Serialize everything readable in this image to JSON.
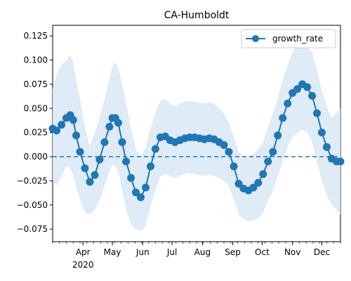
{
  "chart_data": {
    "type": "line",
    "title": "CA-Humboldt",
    "xlabel": "",
    "ylabel": "",
    "x_start": "2020-03-01",
    "x_end": "2020-12-20",
    "ylim": [
      -0.088,
      0.136
    ],
    "yticks": [
      -0.075,
      -0.05,
      -0.025,
      0.0,
      0.025,
      0.05,
      0.075,
      0.1,
      0.125
    ],
    "ytick_labels": [
      "−0.075",
      "−0.050",
      "−0.025",
      "0.000",
      "0.025",
      "0.050",
      "0.075",
      "0.100",
      "0.125"
    ],
    "xticks": [
      {
        "date": "2020-04-01",
        "label": "Apr",
        "year_label": "2020"
      },
      {
        "date": "2020-05-01",
        "label": "May"
      },
      {
        "date": "2020-06-01",
        "label": "Jun"
      },
      {
        "date": "2020-07-01",
        "label": "Jul"
      },
      {
        "date": "2020-08-01",
        "label": "Aug"
      },
      {
        "date": "2020-09-01",
        "label": "Sep"
      },
      {
        "date": "2020-10-01",
        "label": "Oct"
      },
      {
        "date": "2020-11-01",
        "label": "Nov"
      },
      {
        "date": "2020-12-01",
        "label": "Dec"
      }
    ],
    "zero_line": 0,
    "legend": {
      "placement": "top-right"
    },
    "colors": {
      "line": "#1f77b4",
      "band": "#dce9f5"
    },
    "series": [
      {
        "name": "growth_rate",
        "dates": [
          "2020-03-01",
          "2020-03-05",
          "2020-03-10",
          "2020-03-15",
          "2020-03-19",
          "2020-03-22",
          "2020-03-25",
          "2020-03-29",
          "2020-04-03",
          "2020-04-08",
          "2020-04-13",
          "2020-04-18",
          "2020-04-23",
          "2020-04-28",
          "2020-05-01",
          "2020-05-04",
          "2020-05-07",
          "2020-05-11",
          "2020-05-15",
          "2020-05-20",
          "2020-05-25",
          "2020-05-30",
          "2020-06-04",
          "2020-06-09",
          "2020-06-14",
          "2020-06-19",
          "2020-06-24",
          "2020-06-29",
          "2020-07-04",
          "2020-07-09",
          "2020-07-14",
          "2020-07-19",
          "2020-07-24",
          "2020-07-29",
          "2020-08-03",
          "2020-08-08",
          "2020-08-13",
          "2020-08-18",
          "2020-08-23",
          "2020-08-28",
          "2020-09-02",
          "2020-09-07",
          "2020-09-12",
          "2020-09-17",
          "2020-09-22",
          "2020-09-27",
          "2020-10-02",
          "2020-10-07",
          "2020-10-12",
          "2020-10-17",
          "2020-10-22",
          "2020-10-27",
          "2020-11-01",
          "2020-11-06",
          "2020-11-11",
          "2020-11-16",
          "2020-11-21",
          "2020-11-26",
          "2020-12-01",
          "2020-12-06",
          "2020-12-11",
          "2020-12-16",
          "2020-12-20"
        ],
        "values": [
          0.029,
          0.027,
          0.033,
          0.04,
          0.043,
          0.038,
          0.022,
          0.005,
          -0.012,
          -0.026,
          -0.019,
          -0.003,
          0.015,
          0.031,
          0.04,
          0.04,
          0.035,
          0.015,
          -0.005,
          -0.022,
          -0.037,
          -0.042,
          -0.032,
          -0.01,
          0.008,
          0.02,
          0.021,
          0.017,
          0.015,
          0.017,
          0.019,
          0.02,
          0.02,
          0.019,
          0.018,
          0.019,
          0.018,
          0.015,
          0.012,
          0.005,
          -0.01,
          -0.028,
          -0.033,
          -0.035,
          -0.032,
          -0.027,
          -0.018,
          -0.005,
          0.005,
          0.022,
          0.04,
          0.055,
          0.066,
          0.07,
          0.075,
          0.072,
          0.063,
          0.045,
          0.025,
          0.01,
          -0.002,
          -0.005,
          -0.005
        ],
        "band_upper": [
          0.07,
          0.085,
          0.095,
          0.1,
          0.105,
          0.098,
          0.08,
          0.06,
          0.03,
          0.01,
          0.025,
          0.04,
          0.06,
          0.08,
          0.094,
          0.098,
          0.092,
          0.075,
          0.055,
          0.03,
          0.008,
          0.0,
          0.01,
          0.03,
          0.045,
          0.058,
          0.06,
          0.055,
          0.052,
          0.055,
          0.057,
          0.058,
          0.057,
          0.056,
          0.055,
          0.056,
          0.055,
          0.05,
          0.045,
          0.035,
          0.02,
          0.005,
          0.0,
          0.0,
          0.003,
          0.008,
          0.015,
          0.03,
          0.045,
          0.06,
          0.08,
          0.095,
          0.108,
          0.116,
          0.118,
          0.115,
          0.108,
          0.09,
          0.068,
          0.052,
          0.04,
          0.045,
          0.05
        ],
        "band_lower": [
          -0.025,
          -0.03,
          -0.02,
          -0.01,
          -0.012,
          -0.02,
          -0.03,
          -0.045,
          -0.058,
          -0.06,
          -0.055,
          -0.045,
          -0.03,
          -0.015,
          -0.008,
          -0.01,
          -0.015,
          -0.035,
          -0.055,
          -0.07,
          -0.075,
          -0.077,
          -0.072,
          -0.05,
          -0.035,
          -0.02,
          -0.018,
          -0.02,
          -0.022,
          -0.02,
          -0.018,
          -0.017,
          -0.018,
          -0.019,
          -0.02,
          -0.019,
          -0.02,
          -0.022,
          -0.025,
          -0.03,
          -0.045,
          -0.06,
          -0.065,
          -0.067,
          -0.066,
          -0.064,
          -0.058,
          -0.045,
          -0.035,
          -0.02,
          -0.005,
          0.01,
          0.02,
          0.025,
          0.028,
          0.025,
          0.015,
          -0.005,
          -0.025,
          -0.04,
          -0.05,
          -0.055,
          -0.06
        ]
      }
    ]
  }
}
